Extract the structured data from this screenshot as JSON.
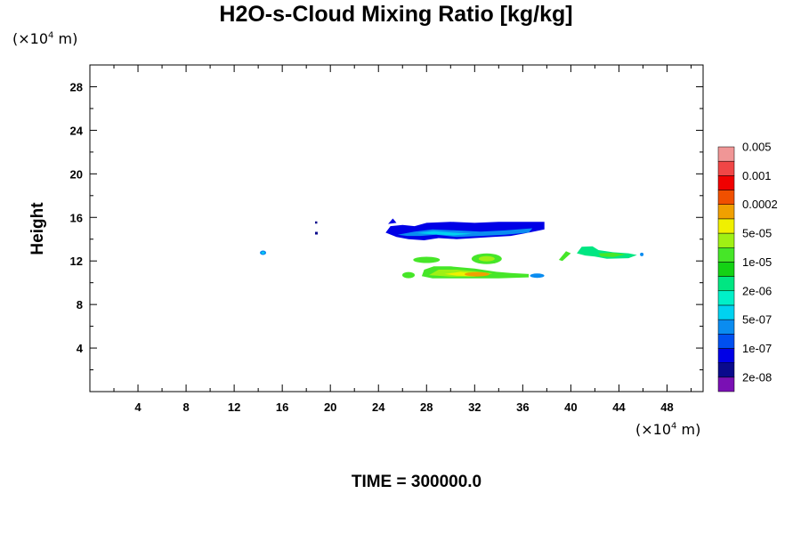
{
  "chart_data": {
    "type": "heatmap",
    "title": "H2O-s-Cloud Mixing Ratio [kg/kg]",
    "ylabel": "Height",
    "x_unit_prefix": "(×10",
    "x_unit_exp": "4",
    "x_unit_suffix": " m)",
    "y_unit_prefix": "(×10",
    "y_unit_exp": "4",
    "y_unit_suffix": " m)",
    "time_label": "TIME = 300000.0",
    "xlim": [
      0,
      51
    ],
    "ylim": [
      0,
      30
    ],
    "x_ticks": [
      4,
      8,
      12,
      16,
      20,
      24,
      28,
      32,
      36,
      40,
      44,
      48
    ],
    "y_ticks": [
      4,
      8,
      12,
      16,
      20,
      24,
      28
    ],
    "colorbar": {
      "colors": [
        "#7a10b4",
        "#0a0a8c",
        "#0000e6",
        "#0050f0",
        "#0a8cf0",
        "#00d2f0",
        "#00f0c8",
        "#00e682",
        "#14d214",
        "#46e628",
        "#a0f014",
        "#f0f000",
        "#f0a000",
        "#f05000",
        "#f00000",
        "#f04646",
        "#f09696"
      ],
      "labels": [
        "2e-08",
        "1e-07",
        "5e-07",
        "2e-06",
        "1e-05",
        "5e-05",
        "0.0002",
        "0.001",
        "0.005"
      ]
    },
    "clouds": [
      {
        "name": "upper cloud band",
        "x_range": [
          24.5,
          37.8
        ],
        "y_range": [
          13.8,
          15.8
        ],
        "max_level": "5e-07",
        "min_level": "2e-08"
      },
      {
        "name": "lower cloud band",
        "x_range": [
          25.8,
          37.8
        ],
        "y_range": [
          10.3,
          12.4
        ],
        "max_level": "0.0002",
        "min_level": "5e-07"
      },
      {
        "name": "eastern cloud",
        "x_range": [
          38.8,
          45.8
        ],
        "y_range": [
          12.1,
          13.4
        ],
        "max_level": "2e-06",
        "min_level": "5e-07"
      },
      {
        "name": "small cloud near 14",
        "x_range": [
          14.1,
          14.7
        ],
        "y_range": [
          12.5,
          12.9
        ],
        "max_level": "5e-07",
        "min_level": "1e-07"
      },
      {
        "name": "specks near 19",
        "x_range": [
          18.7,
          19.0
        ],
        "y_range": [
          14.4,
          15.6
        ],
        "max_level": "2e-08",
        "min_level": "2e-08"
      }
    ]
  }
}
